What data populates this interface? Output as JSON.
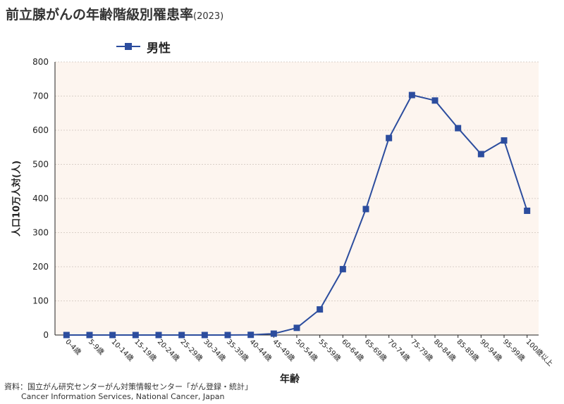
{
  "title": "前立腺がんの年齢階級別罹患率",
  "title_suffix": "(2023)",
  "source_ja": "資料：国立がん研究センターがん対策情報センター「がん登録・統計」",
  "source_en": "Cancer Information Services, National Cancer, Japan",
  "colors": {
    "series": "#2c4d9e",
    "plot_bg": "#fdf5ef",
    "grid": "#d9d0c8"
  },
  "chart_data": {
    "type": "line",
    "title": "前立腺がんの年齢階級別罹患率",
    "xlabel": "年齢",
    "ylabel": "人口10万人対(人)",
    "ylim": [
      0,
      800
    ],
    "yticks": [
      0,
      100,
      200,
      300,
      400,
      500,
      600,
      700,
      800
    ],
    "grid": true,
    "legend_position": "top-left",
    "categories": [
      "0-4歳",
      "5-9歳",
      "10-14歳",
      "15-19歳",
      "20-24歳",
      "25-29歳",
      "30-34歳",
      "35-39歳",
      "40-44歳",
      "45-49歳",
      "50-54歳",
      "55-59歳",
      "60-64歳",
      "65-69歳",
      "70-74歳",
      "75-79歳",
      "80-84歳",
      "85-89歳",
      "90-94歳",
      "95-99歳",
      "100歳以上"
    ],
    "series": [
      {
        "name": "男性",
        "values": [
          0,
          0,
          0,
          0,
          0,
          0,
          0,
          0,
          0.5,
          4,
          21,
          75,
          193,
          369,
          577,
          703,
          687,
          606,
          530,
          570,
          364
        ]
      }
    ]
  }
}
